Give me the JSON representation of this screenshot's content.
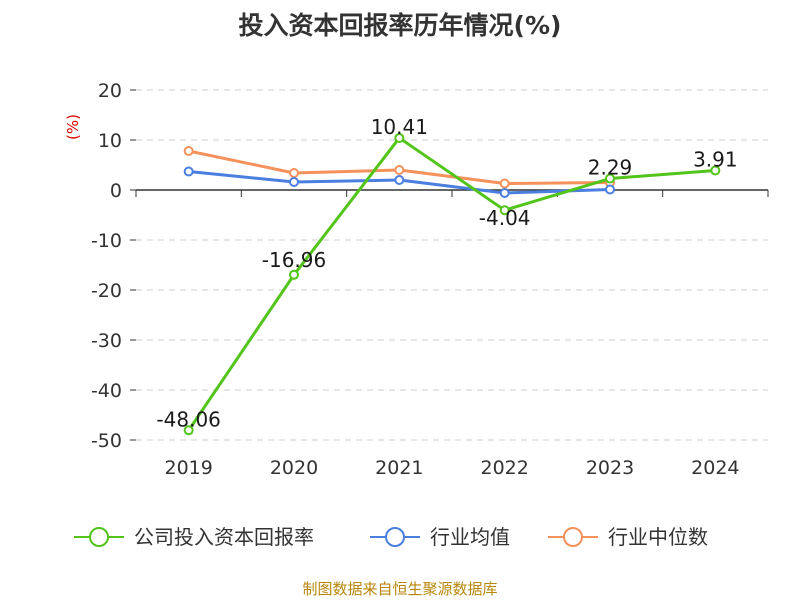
{
  "chart_data": {
    "type": "line",
    "title": "投入资本回报率历年情况(%)",
    "ylabel": "(%)",
    "ylabel_color": "#dd0000",
    "categories": [
      "2019",
      "2020",
      "2021",
      "2022",
      "2023",
      "2024"
    ],
    "y_ticks": [
      20,
      10,
      0,
      -10,
      -20,
      -30,
      -40,
      -50
    ],
    "ylim": [
      -50,
      20
    ],
    "grid": true,
    "legend_position": "bottom",
    "series": [
      {
        "name": "公司投入资本回报率",
        "color": "#52c41a",
        "values": [
          -48.06,
          -16.96,
          10.41,
          -4.04,
          2.29,
          3.91
        ],
        "labels": [
          "-48.06",
          "-16.96",
          "10.41",
          "-4.04",
          "2.29",
          "3.91"
        ]
      },
      {
        "name": "行业均值",
        "color": "#4a7fe0",
        "values": [
          3.7,
          1.6,
          2.0,
          -0.6,
          0.1,
          null
        ]
      },
      {
        "name": "行业中位数",
        "color": "#f5915a",
        "values": [
          7.8,
          3.4,
          4.0,
          1.3,
          1.5,
          null
        ]
      }
    ]
  },
  "source": "制图数据来自恒生聚源数据库"
}
